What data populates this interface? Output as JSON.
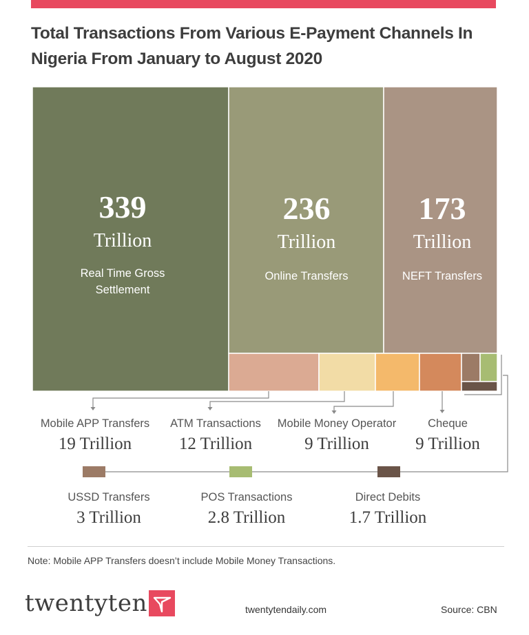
{
  "title": "Total Transactions From Various E-Payment Channels In Nigeria From January to August 2020",
  "colors": {
    "accent": "#e8495f",
    "rtgs": "#707a5a",
    "online": "#999a78",
    "neft": "#aa9484",
    "mobile_app": "#dbaa93",
    "atm": "#f2dca6",
    "mobile_money": "#f4b96b",
    "cheque": "#d4895c",
    "ussd": "#9c7b66",
    "pos": "#a7bc72",
    "direct_debits": "#6a5448"
  },
  "chart_data": {
    "type": "treemap",
    "unit": "Trillion",
    "items": [
      {
        "name": "Real Time Gross Settlement",
        "value": 339,
        "value_text": "339",
        "unit_text": "Trillion"
      },
      {
        "name": "Online Transfers",
        "value": 236,
        "value_text": "236",
        "unit_text": "Trillion"
      },
      {
        "name": "NEFT Transfers",
        "value": 173,
        "value_text": "173",
        "unit_text": "Trillion"
      },
      {
        "name": "Mobile APP Transfers",
        "value": 19,
        "value_text": "19 Trillion"
      },
      {
        "name": "ATM Transactions",
        "value": 12,
        "value_text": "12 Trillion"
      },
      {
        "name": "Mobile Money Operator",
        "value": 9,
        "value_text": "9 Trillion"
      },
      {
        "name": "Cheque",
        "value": 9,
        "value_text": "9 Trillion"
      },
      {
        "name": "USSD Transfers",
        "value": 3,
        "value_text": "3 Trillion"
      },
      {
        "name": "POS Transactions",
        "value": 2.8,
        "value_text": "2.8 Trillion"
      },
      {
        "name": "Direct Debits",
        "value": 1.7,
        "value_text": "1.7 Trillion"
      }
    ]
  },
  "note": "Note: Mobile APP Transfers doesn’t include Mobile Money Transactions.",
  "footer": {
    "brand": "twentyten",
    "website": "twentytendaily.com",
    "source": "Source: CBN"
  }
}
